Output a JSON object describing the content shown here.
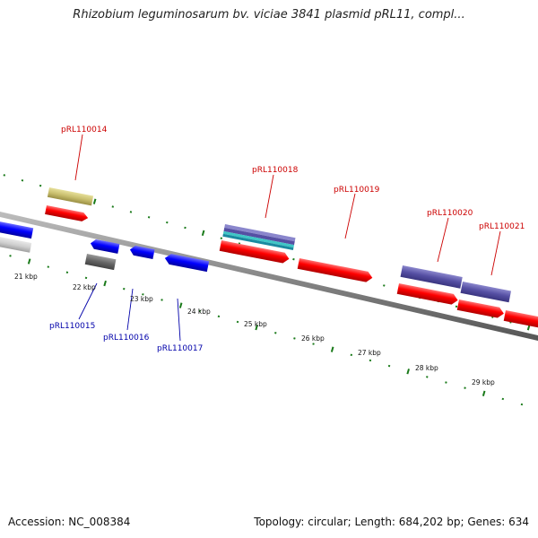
{
  "title": "Rhizobium leguminosarum bv. viciae 3841 plasmid pRL11, compl...",
  "footer": {
    "accession": "Accession: NC_008384",
    "stats": "Topology: circular; Length: 684,202 bp; Genes: 634"
  },
  "scale_labels": [
    "21 kbp",
    "22 kbp",
    "23 kbp",
    "24 kbp",
    "25 kbp",
    "26 kbp",
    "27 kbp",
    "28 kbp",
    "29 kbp"
  ],
  "gene_labels_forward": [
    "pRL110014",
    "pRL110018",
    "pRL110019",
    "pRL110020",
    "pRL110021"
  ],
  "gene_labels_reverse": [
    "pRL110015",
    "pRL110016",
    "pRL110017"
  ],
  "colors": {
    "forward_gene": "#ff0000",
    "reverse_gene": "#0000ff",
    "tick": "#1a7a1a",
    "backbone": "#888888",
    "label_forward": "#cc0000",
    "label_reverse": "#0000aa"
  }
}
